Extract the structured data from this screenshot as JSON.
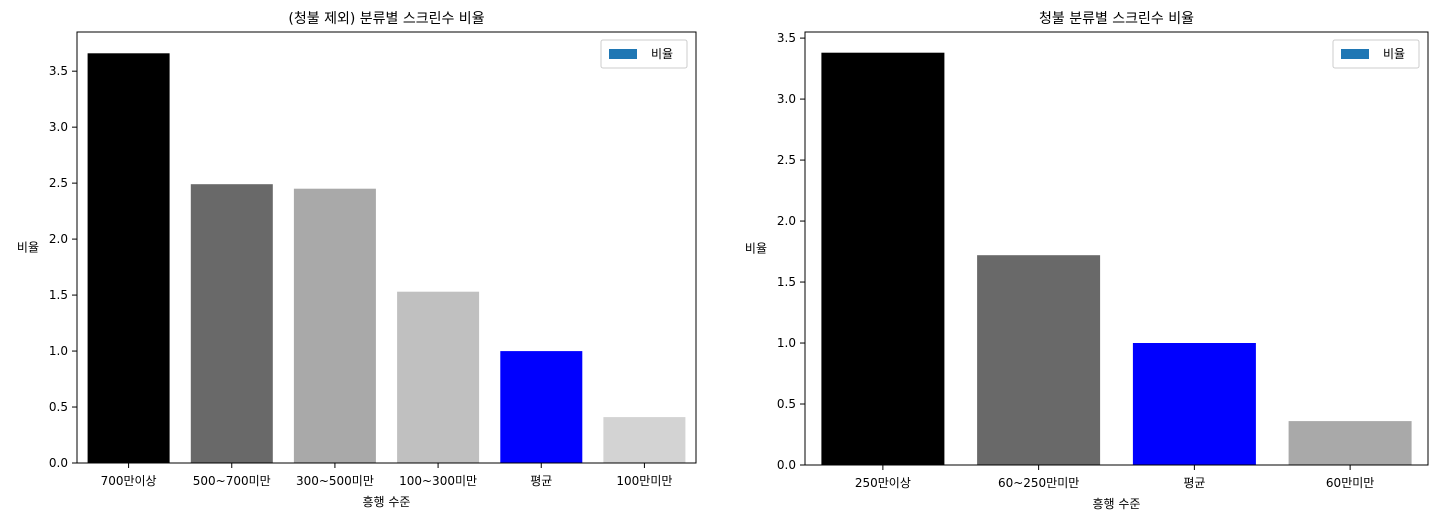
{
  "chart_data": [
    {
      "type": "bar",
      "title": "(청불 제외) 분류별 스크린수 비율",
      "xlabel": "흥행 수준",
      "ylabel": "비율",
      "categories": [
        "700만이상",
        "500~700미만",
        "300~500미만",
        "100~300미만",
        "평균",
        "100만미만"
      ],
      "values": [
        3.66,
        2.49,
        2.45,
        1.53,
        1.0,
        0.41
      ],
      "colors": [
        "#000000",
        "#696969",
        "#a9a9a9",
        "#c0c0c0",
        "#0000ff",
        "#d3d3d3"
      ],
      "ylim": [
        0,
        3.85
      ],
      "yticks": [
        "0.0",
        "0.5",
        "1.0",
        "1.5",
        "2.0",
        "2.5",
        "3.0",
        "3.5"
      ],
      "legend": {
        "label": "비율",
        "color": "#1f77b4",
        "placement": "top-right"
      },
      "grid": false
    },
    {
      "type": "bar",
      "title": "청불 분류별 스크린수 비율",
      "xlabel": "흥행 수준",
      "ylabel": "비율",
      "categories": [
        "250만이상",
        "60~250만미만",
        "평균",
        "60만미만"
      ],
      "values": [
        3.38,
        1.72,
        1.0,
        0.36
      ],
      "colors": [
        "#000000",
        "#696969",
        "#0000ff",
        "#a9a9a9"
      ],
      "ylim": [
        0,
        3.55
      ],
      "yticks": [
        "0.0",
        "0.5",
        "1.0",
        "1.5",
        "2.0",
        "2.5",
        "3.0",
        "3.5"
      ],
      "legend": {
        "label": "비율",
        "color": "#1f77b4",
        "placement": "top-right"
      },
      "grid": false
    }
  ]
}
